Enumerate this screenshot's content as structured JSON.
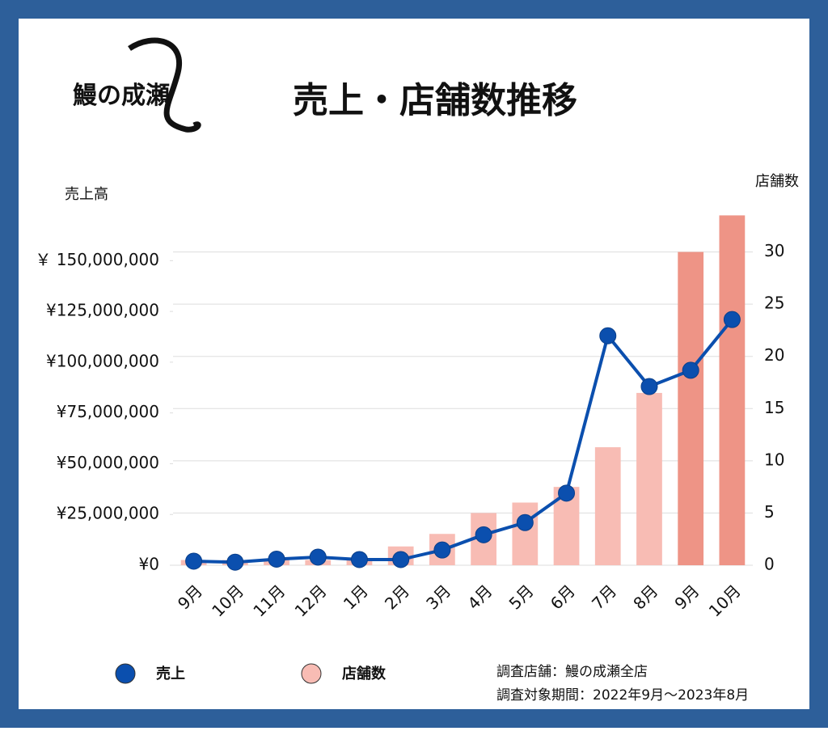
{
  "chart_data": {
    "type": "bar_line",
    "title": "売上・店舗数推移",
    "logo": "鰻の成瀬",
    "y_axis_label": "売上高",
    "y2_axis_label": "店舗数",
    "categories": [
      "9月",
      "10月",
      "11月",
      "12月",
      "1月",
      "2月",
      "3月",
      "4月",
      "5月",
      "6月",
      "7月",
      "8月",
      "9月",
      "10月"
    ],
    "series": [
      {
        "name": "売上",
        "type": "line",
        "axis": "y",
        "color": "#0b4fae",
        "values": [
          2000000,
          1500000,
          3000000,
          4000000,
          2800000,
          2800000,
          7500000,
          15000000,
          21000000,
          35500000,
          113000000,
          88000000,
          96000000,
          121000000
        ]
      },
      {
        "name": "店舗数",
        "type": "bar",
        "axis": "y2",
        "color": "#f8bcb4",
        "colors": [
          "#f8bcb4",
          "#f8bcb4",
          "#f8bcb4",
          "#f8bcb4",
          "#f8bcb4",
          "#f8bcb4",
          "#f8bcb4",
          "#f8bcb4",
          "#f8bcb4",
          "#f8bcb4",
          "#f8bcb4",
          "#f8bcb4",
          "#ee9486",
          "#ee9486"
        ],
        "values": [
          0.5,
          0.5,
          0.5,
          0.5,
          0.5,
          1.8,
          3,
          5,
          6,
          7.5,
          11.3,
          16.5,
          30,
          33.5
        ]
      }
    ],
    "ylim": [
      0,
      180000000
    ],
    "yticks": [
      {
        "value": 0,
        "label": "¥0"
      },
      {
        "value": 25000000,
        "label": "¥25,000,000"
      },
      {
        "value": 50000000,
        "label": "¥50,000,000"
      },
      {
        "value": 75000000,
        "label": "¥75,000,000"
      },
      {
        "value": 100000000,
        "label": "¥100,000,000"
      },
      {
        "value": 125000000,
        "label": "¥125,000,000"
      },
      {
        "value": 150000000,
        "label": "￥ 150,000,000"
      }
    ],
    "y2lim": [
      0,
      35
    ],
    "y2ticks": [
      0,
      5,
      10,
      15,
      20,
      25,
      30
    ],
    "grid": true,
    "notes": [
      "調査店舗：鰻の成瀬全店",
      "調査対象期間：2022年9月〜2023年8月"
    ]
  }
}
